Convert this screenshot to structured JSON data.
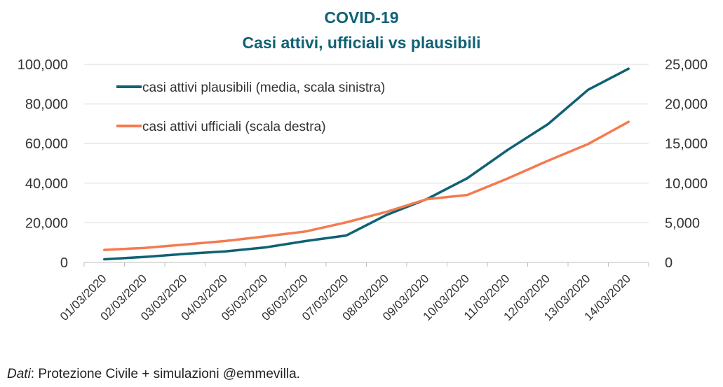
{
  "title_line1": "COVID-19",
  "title_line2": "Casi attivi, ufficiali vs plausibili",
  "source": {
    "italic": "Dati",
    "rest": ": Protezione Civile + simulazioni @emmevilla."
  },
  "chart_data": {
    "type": "line",
    "title": "COVID-19 Casi attivi, ufficiali vs plausibili",
    "x": [
      "01/03/2020",
      "02/03/2020",
      "03/03/2020",
      "04/03/2020",
      "05/03/2020",
      "06/03/2020",
      "07/03/2020",
      "08/03/2020",
      "09/03/2020",
      "10/03/2020",
      "11/03/2020",
      "12/03/2020",
      "13/03/2020",
      "14/03/2020"
    ],
    "left_axis": {
      "min": 0,
      "max": 100000,
      "step": 20000,
      "ticks": [
        "0",
        "20,000",
        "40,000",
        "60,000",
        "80,000",
        "100,000"
      ]
    },
    "right_axis": {
      "min": 0,
      "max": 25000,
      "step": 5000,
      "ticks": [
        "0",
        "5,000",
        "10,000",
        "15,000",
        "20,000",
        "25,000"
      ]
    },
    "grid": true,
    "legend_position": "top-left",
    "series": [
      {
        "name": "casi attivi plausibili (media, scala sinistra)",
        "axis": "left",
        "color": "#0f6274",
        "values": [
          1600,
          2800,
          4300,
          5600,
          7600,
          10800,
          13600,
          24000,
          32000,
          42500,
          56800,
          69800,
          87200,
          97800
        ]
      },
      {
        "name": "casi attivi ufficiali (scala destra)",
        "axis": "right",
        "color": "#f47b4f",
        "values": [
          1577,
          1835,
          2263,
          2706,
          3296,
          3916,
          5061,
          6387,
          7985,
          8514,
          10590,
          12839,
          14955,
          17750
        ]
      }
    ]
  }
}
